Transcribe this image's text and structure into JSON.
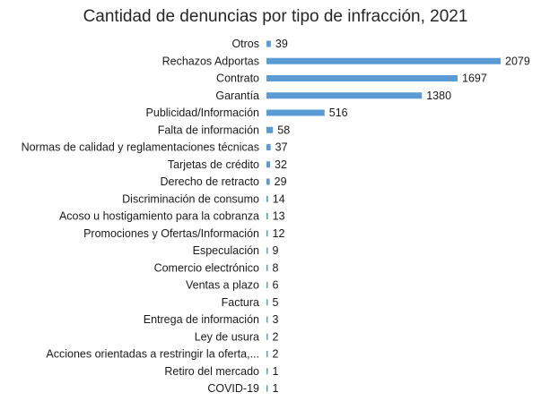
{
  "chart_data": {
    "type": "bar",
    "orientation": "horizontal",
    "title": "Cantidad de denuncias por tipo de infracción, 2021",
    "xlabel": "",
    "ylabel": "",
    "xlim": [
      0,
      2079
    ],
    "grid": false,
    "legend": "none",
    "bar_color": "#5b9bd5",
    "categories": [
      "Otros",
      "Rechazos Adportas",
      "Contrato",
      "Garantía",
      "Publicidad/Información",
      "Falta de información",
      "Normas de calidad y reglamentaciones técnicas",
      "Tarjetas de crédito",
      "Derecho de retracto",
      "Discriminación de consumo",
      "Acoso u hostigamiento para la cobranza",
      "Promociones y Ofertas/Información",
      "Especulación",
      "Comercio electrónico",
      "Ventas a plazo",
      "Factura",
      "Entrega de información",
      "Ley de usura",
      "Acciones orientadas a restringir la oferta,...",
      "Retiro del mercado",
      "COVID-19"
    ],
    "values": [
      39,
      2079,
      1697,
      1380,
      516,
      58,
      37,
      32,
      29,
      14,
      13,
      12,
      9,
      8,
      6,
      5,
      3,
      2,
      2,
      1,
      1
    ]
  }
}
